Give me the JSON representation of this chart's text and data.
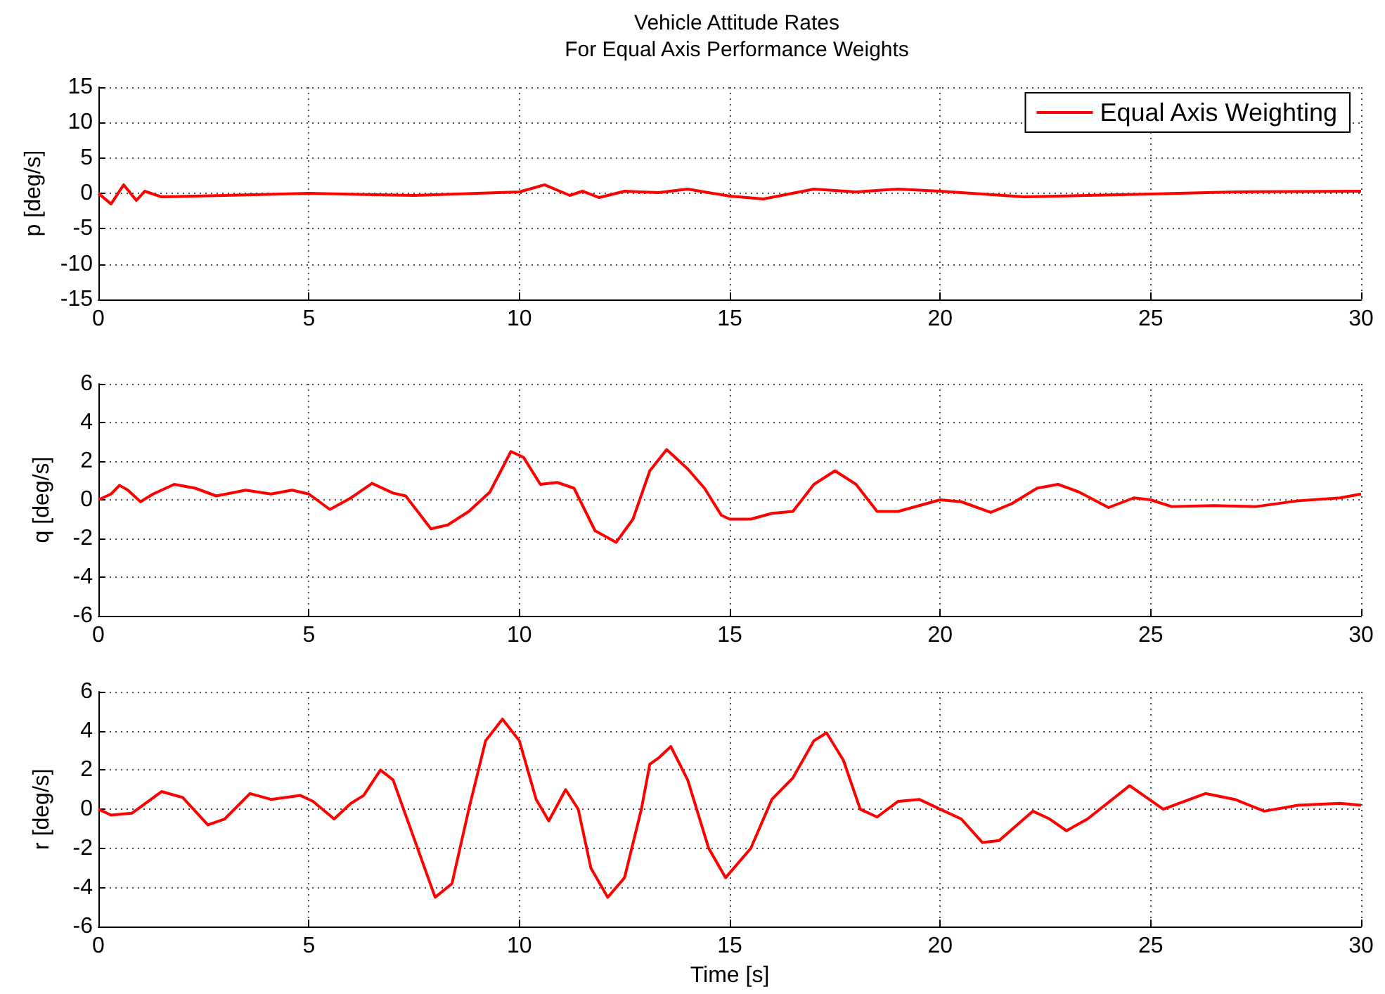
{
  "chart_data": [
    {
      "type": "line",
      "title": "Vehicle Attitude Rates\nFor Equal Axis Performance Weights",
      "ylabel": "p [deg/s]",
      "x": [
        0,
        0.3,
        0.6,
        0.9,
        1.1,
        1.5,
        3,
        5,
        7.5,
        10,
        10.6,
        11.2,
        11.5,
        11.9,
        12.5,
        13.3,
        14,
        15,
        15.8,
        17,
        18,
        19,
        20,
        22,
        25,
        27,
        30
      ],
      "series": [
        {
          "name": "Equal Axis Weighting",
          "color": "#ff0000",
          "values": [
            0,
            -1.5,
            1.2,
            -1,
            0.3,
            -0.5,
            -0.3,
            0,
            -0.3,
            0.2,
            1.2,
            -0.3,
            0.3,
            -0.6,
            0.3,
            0.1,
            0.6,
            -0.4,
            -0.8,
            0.6,
            0.2,
            0.6,
            0.3,
            -0.5,
            -0.1,
            0.2,
            0.3
          ]
        }
      ],
      "xlim": [
        0,
        30
      ],
      "xticks": [
        0,
        5,
        10,
        15,
        20,
        25,
        30
      ],
      "ylim": [
        -15,
        15
      ],
      "yticks": [
        -15,
        -10,
        -5,
        0,
        5,
        10,
        15
      ],
      "grid": true,
      "legend": "top right",
      "marker": "none",
      "line_style": "solid"
    },
    {
      "type": "line",
      "ylabel": "q [deg/s]",
      "x": [
        0,
        0.3,
        0.5,
        0.7,
        1,
        1.3,
        1.8,
        2.3,
        2.8,
        3.5,
        4.1,
        4.6,
        5,
        5.5,
        6,
        6.5,
        7,
        7.3,
        7.9,
        8.3,
        8.8,
        9.3,
        9.8,
        10.1,
        10.5,
        10.9,
        11.3,
        11.8,
        12.3,
        12.7,
        13.1,
        13.5,
        14,
        14.4,
        14.8,
        15,
        15.5,
        16,
        16.5,
        17,
        17.5,
        18,
        18.5,
        19,
        19.5,
        20,
        20.5,
        21.2,
        21.7,
        22.3,
        22.8,
        23.3,
        24,
        24.6,
        25,
        25.5,
        26.5,
        27.5,
        28.5,
        29.5,
        30
      ],
      "series": [
        {
          "color": "#ff0000",
          "values": [
            0,
            0.3,
            0.75,
            0.5,
            -0.1,
            0.3,
            0.8,
            0.6,
            0.2,
            0.5,
            0.3,
            0.5,
            0.3,
            -0.5,
            0.1,
            0.85,
            0.35,
            0.2,
            -1.5,
            -1.3,
            -0.6,
            0.4,
            2.5,
            2.2,
            0.8,
            0.9,
            0.6,
            -1.6,
            -2.2,
            -1,
            1.5,
            2.6,
            1.6,
            0.6,
            -0.8,
            -1,
            -1,
            -0.7,
            -0.6,
            0.8,
            1.5,
            0.8,
            -0.6,
            -0.6,
            -0.3,
            0,
            -0.1,
            -0.65,
            -0.2,
            0.6,
            0.8,
            0.4,
            -0.4,
            0.1,
            0,
            -0.35,
            -0.3,
            -0.35,
            -0.05,
            0.1,
            0.3
          ]
        }
      ],
      "xlim": [
        0,
        30
      ],
      "xticks": [
        0,
        5,
        10,
        15,
        20,
        25,
        30
      ],
      "ylim": [
        -6,
        6
      ],
      "yticks": [
        -6,
        -4,
        -2,
        0,
        2,
        4,
        6
      ],
      "grid": true,
      "marker": "none",
      "line_style": "solid"
    },
    {
      "type": "line",
      "xlabel": "Time [s]",
      "ylabel": "r [deg/s]",
      "x": [
        0,
        0.3,
        0.8,
        1.5,
        2,
        2.6,
        3,
        3.6,
        4.1,
        4.8,
        5.1,
        5.6,
        6,
        6.3,
        6.7,
        7,
        7.5,
        8,
        8.4,
        8.8,
        9.2,
        9.6,
        10,
        10.4,
        10.7,
        11.1,
        11.4,
        11.7,
        12.1,
        12.5,
        12.9,
        13.1,
        13.3,
        13.6,
        14,
        14.5,
        14.9,
        15.5,
        16,
        16.5,
        17,
        17.3,
        17.7,
        18.1,
        18.5,
        19,
        19.5,
        20,
        20.5,
        21,
        21.4,
        22.2,
        22.6,
        23,
        23.5,
        24.5,
        25.3,
        26.3,
        27,
        27.7,
        28.5,
        29.5,
        30
      ],
      "series": [
        {
          "color": "#ff0000",
          "values": [
            0,
            -0.3,
            -0.2,
            0.9,
            0.6,
            -0.8,
            -0.5,
            0.8,
            0.5,
            0.7,
            0.4,
            -0.5,
            0.3,
            0.7,
            2,
            1.5,
            -1.5,
            -4.5,
            -3.8,
            0,
            3.5,
            4.6,
            3.5,
            0.5,
            -0.6,
            1,
            0,
            -3,
            -4.5,
            -3.5,
            0,
            2.3,
            2.6,
            3.2,
            1.5,
            -2,
            -3.5,
            -2,
            0.5,
            1.6,
            3.5,
            3.9,
            2.5,
            0,
            -0.4,
            0.4,
            0.5,
            0,
            -0.5,
            -1.7,
            -1.6,
            -0.1,
            -0.5,
            -1.1,
            -0.5,
            1.2,
            0,
            0.8,
            0.5,
            -0.1,
            0.2,
            0.3,
            0.2
          ]
        }
      ],
      "xlim": [
        0,
        30
      ],
      "xticks": [
        0,
        5,
        10,
        15,
        20,
        25,
        30
      ],
      "ylim": [
        -6,
        6
      ],
      "yticks": [
        -6,
        -4,
        -2,
        0,
        2,
        4,
        6
      ],
      "grid": true,
      "marker": "none",
      "line_style": "solid"
    }
  ]
}
